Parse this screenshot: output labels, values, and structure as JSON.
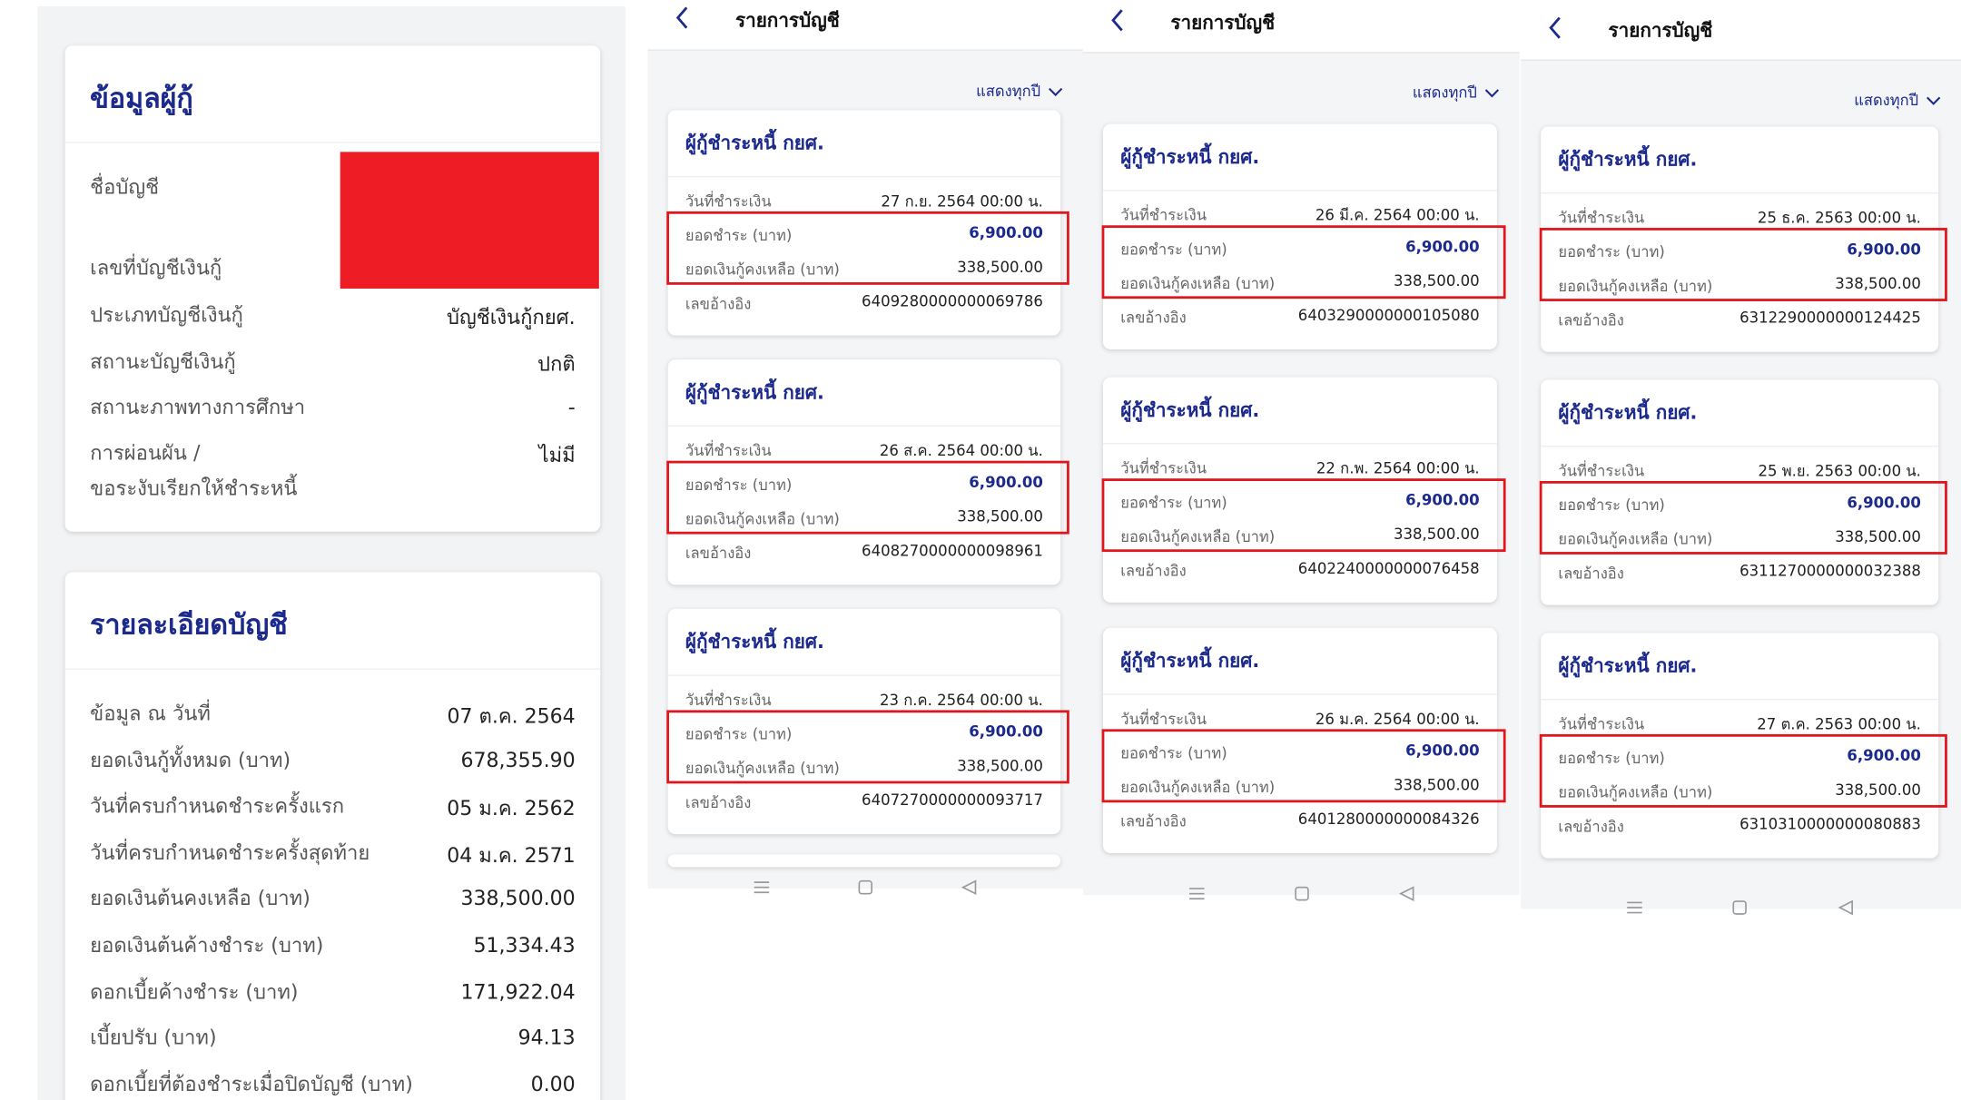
{
  "borrower_info": {
    "title": "ข้อมูลผู้กู้",
    "rows": [
      {
        "label": "ชื่อบัญชี"
      },
      {
        "label": "เลขที่บัญชีเงินกู้"
      },
      {
        "label": "ประเภทบัญชีเงินกู้",
        "value": "บัญชีเงินกู้กยศ."
      },
      {
        "label": "สถานะบัญชีเงินกู้",
        "value": "ปกติ"
      },
      {
        "label": "สถานะภาพทางการศึกษา",
        "value": "-"
      },
      {
        "label": "การผ่อนผัน /\nขอระงับเรียกให้ชำระหนี้",
        "value": "ไม่มี"
      }
    ]
  },
  "account_details": {
    "title": "รายละเอียดบัญชี",
    "rows": [
      {
        "label": "ข้อมูล ณ วันที่",
        "value": "07 ต.ค. 2564"
      },
      {
        "label": "ยอดเงินกู้ทั้งหมด (บาท)",
        "value": "678,355.90"
      },
      {
        "label": "วันที่ครบกำหนดชำระครั้งแรก",
        "value": "05 ม.ค. 2562"
      },
      {
        "label": "วันที่ครบกำหนดชำระครั้งสุดท้าย",
        "value": "04 ม.ค. 2571"
      },
      {
        "label": "ยอดเงินต้นคงเหลือ (บาท)",
        "value": "338,500.00"
      },
      {
        "label": "ยอดเงินต้นค้างชำระ (บาท)",
        "value": "51,334.43"
      },
      {
        "label": "ดอกเบี้ยค้างชำระ (บาท)",
        "value": "171,922.04"
      },
      {
        "label": "เบี้ยปรับ (บาท)",
        "value": "94.13"
      },
      {
        "label": "ดอกเบี้ยที่ต้องชำระเมื่อปิดบัญชี (บาท)",
        "value": "0.00"
      }
    ]
  },
  "screens": [
    {
      "header": "รายการบัญชี",
      "filter": "แสดงทุกปี",
      "cards": [
        {
          "title": "ผู้กู้ชำระหนี้ กยศ.",
          "date_label": "วันที่ชำระเงิน",
          "date": "27 ก.ย. 2564 00:00 น.",
          "payment_label": "ยอดชำระ (บาท)",
          "payment": "6,900.00",
          "balance_label": "ยอดเงินกู้คงเหลือ (บาท)",
          "balance": "338,500.00",
          "ref_label": "เลขอ้างอิง",
          "ref": "6409280000000069786"
        },
        {
          "title": "ผู้กู้ชำระหนี้ กยศ.",
          "date_label": "วันที่ชำระเงิน",
          "date": "26 ส.ค. 2564 00:00 น.",
          "payment_label": "ยอดชำระ (บาท)",
          "payment": "6,900.00",
          "balance_label": "ยอดเงินกู้คงเหลือ (บาท)",
          "balance": "338,500.00",
          "ref_label": "เลขอ้างอิง",
          "ref": "6408270000000098961"
        },
        {
          "title": "ผู้กู้ชำระหนี้ กยศ.",
          "date_label": "วันที่ชำระเงิน",
          "date": "23 ก.ค. 2564 00:00 น.",
          "payment_label": "ยอดชำระ (บาท)",
          "payment": "6,900.00",
          "balance_label": "ยอดเงินกู้คงเหลือ (บาท)",
          "balance": "338,500.00",
          "ref_label": "เลขอ้างอิง",
          "ref": "6407270000000093717"
        }
      ]
    },
    {
      "header": "รายการบัญชี",
      "filter": "แสดงทุกปี",
      "cards": [
        {
          "title": "ผู้กู้ชำระหนี้ กยศ.",
          "date_label": "วันที่ชำระเงิน",
          "date": "26 มี.ค. 2564 00:00 น.",
          "payment_label": "ยอดชำระ (บาท)",
          "payment": "6,900.00",
          "balance_label": "ยอดเงินกู้คงเหลือ (บาท)",
          "balance": "338,500.00",
          "ref_label": "เลขอ้างอิง",
          "ref": "6403290000000105080"
        },
        {
          "title": "ผู้กู้ชำระหนี้ กยศ.",
          "date_label": "วันที่ชำระเงิน",
          "date": "22 ก.พ. 2564 00:00 น.",
          "payment_label": "ยอดชำระ (บาท)",
          "payment": "6,900.00",
          "balance_label": "ยอดเงินกู้คงเหลือ (บาท)",
          "balance": "338,500.00",
          "ref_label": "เลขอ้างอิง",
          "ref": "6402240000000076458"
        },
        {
          "title": "ผู้กู้ชำระหนี้ กยศ.",
          "date_label": "วันที่ชำระเงิน",
          "date": "26 ม.ค. 2564 00:00 น.",
          "payment_label": "ยอดชำระ (บาท)",
          "payment": "6,900.00",
          "balance_label": "ยอดเงินกู้คงเหลือ (บาท)",
          "balance": "338,500.00",
          "ref_label": "เลขอ้างอิง",
          "ref": "6401280000000084326"
        }
      ]
    },
    {
      "header": "รายการบัญชี",
      "filter": "แสดงทุกปี",
      "cards": [
        {
          "title": "ผู้กู้ชำระหนี้ กยศ.",
          "date_label": "วันที่ชำระเงิน",
          "date": "25 ธ.ค. 2563 00:00 น.",
          "payment_label": "ยอดชำระ (บาท)",
          "payment": "6,900.00",
          "balance_label": "ยอดเงินกู้คงเหลือ (บาท)",
          "balance": "338,500.00",
          "ref_label": "เลขอ้างอิง",
          "ref": "6312290000000124425"
        },
        {
          "title": "ผู้กู้ชำระหนี้ กยศ.",
          "date_label": "วันที่ชำระเงิน",
          "date": "25 พ.ย. 2563 00:00 น.",
          "payment_label": "ยอดชำระ (บาท)",
          "payment": "6,900.00",
          "balance_label": "ยอดเงินกู้คงเหลือ (บาท)",
          "balance": "338,500.00",
          "ref_label": "เลขอ้างอิง",
          "ref": "6311270000000032388"
        },
        {
          "title": "ผู้กู้ชำระหนี้ กยศ.",
          "date_label": "วันที่ชำระเงิน",
          "date": "27 ต.ค. 2563 00:00 น.",
          "payment_label": "ยอดชำระ (บาท)",
          "payment": "6,900.00",
          "balance_label": "ยอดเงินกู้คงเหลือ (บาท)",
          "balance": "338,500.00",
          "ref_label": "เลขอ้างอิง",
          "ref": "6310310000000080883"
        }
      ]
    }
  ]
}
